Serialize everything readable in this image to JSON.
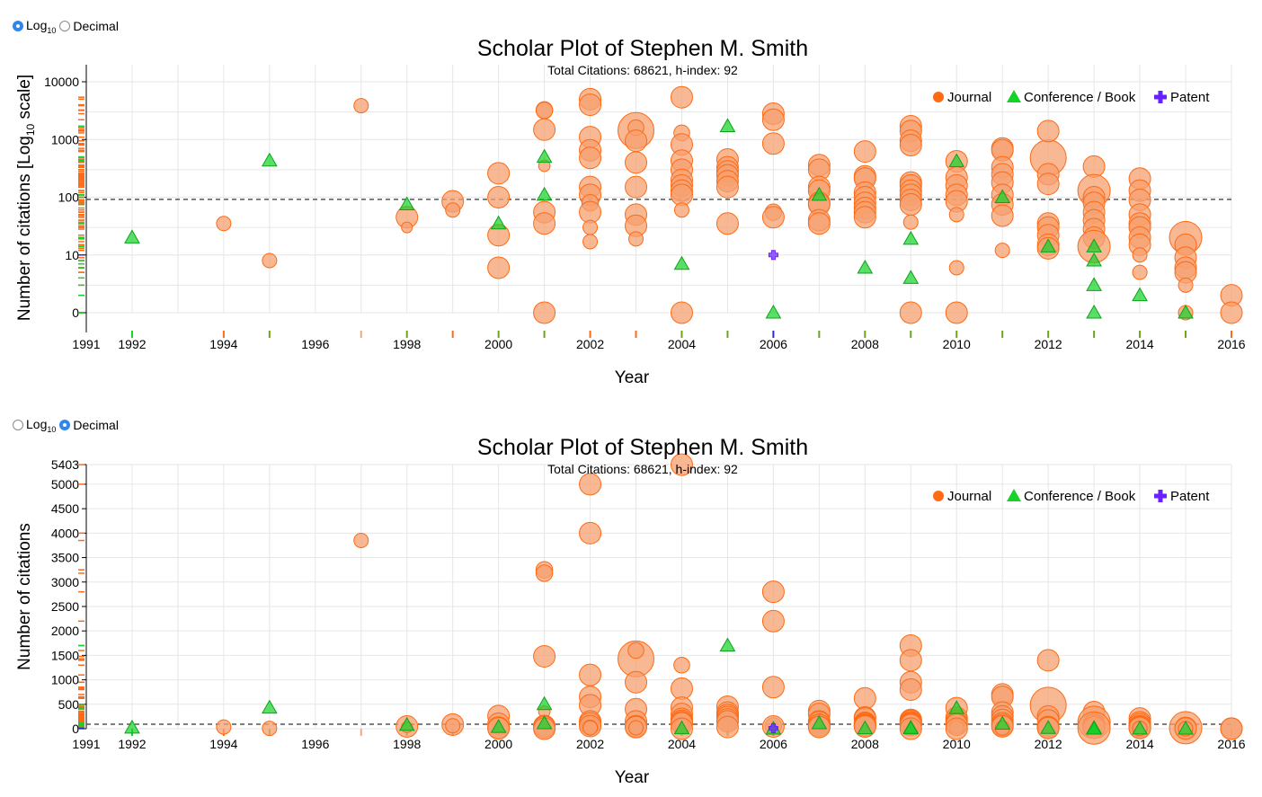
{
  "scale_toggle": {
    "log_label": "Log",
    "log_subscript": "10",
    "decimal_label": "Decimal"
  },
  "colors": {
    "journal": "#ff6a13",
    "journal_fill": "#f6a070",
    "conference": "#14d227",
    "patent": "#6a1fff",
    "hindex_line": "#555555",
    "grid": "#e6e6e6"
  },
  "chart_data": [
    {
      "type": "scatter",
      "scale": "log",
      "selected": "log",
      "title": "Scholar Plot of Stephen M. Smith",
      "subtitle": "Total Citations: 68621, h-index: 92",
      "xlabel": "Year",
      "ylabel": "Number of citations [Log10 scale]",
      "ylabel_parts": [
        "Number of citations [Log",
        "10",
        " scale]"
      ],
      "x_ticks": [
        1991,
        1992,
        1994,
        1996,
        1998,
        2000,
        2002,
        2004,
        2006,
        2008,
        2010,
        2012,
        2014,
        2016
      ],
      "y_ticks": [
        0,
        10,
        100,
        1000,
        10000
      ],
      "y_tick_labels": [
        "0",
        "10",
        "100",
        "1000",
        "10000"
      ],
      "xlim": [
        1991,
        2016
      ],
      "hindex": 92,
      "legend": [
        "Journal",
        "Conference / Book",
        "Patent"
      ],
      "legend_position": "top-right",
      "grid": true
    },
    {
      "type": "scatter",
      "scale": "linear",
      "selected": "decimal",
      "title": "Scholar Plot of Stephen M. Smith",
      "subtitle": "Total Citations: 68621, h-index: 92",
      "xlabel": "Year",
      "ylabel": "Number of citations",
      "x_ticks": [
        1991,
        1992,
        1994,
        1996,
        1998,
        2000,
        2002,
        2004,
        2006,
        2008,
        2010,
        2012,
        2014,
        2016
      ],
      "y_ticks": [
        0,
        500,
        1000,
        1500,
        2000,
        2500,
        3000,
        3500,
        4000,
        4500,
        5000,
        5403
      ],
      "y_tick_labels": [
        "0",
        "500",
        "1000",
        "1500",
        "2000",
        "2500",
        "3000",
        "3500",
        "4000",
        "4500",
        "5000",
        "5403"
      ],
      "ylim": [
        0,
        5403
      ],
      "xlim": [
        1991,
        2016
      ],
      "hindex": 92,
      "legend": [
        "Journal",
        "Conference / Book",
        "Patent"
      ],
      "legend_position": "top-right",
      "grid": true
    }
  ],
  "publications": {
    "journal": [
      [
        1994,
        35,
        1
      ],
      [
        1995,
        8,
        1
      ],
      [
        1997,
        3850,
        1
      ],
      [
        1998,
        45,
        2
      ],
      [
        1998,
        30,
        0.5
      ],
      [
        1999,
        85,
        2
      ],
      [
        1999,
        60,
        1
      ],
      [
        2000,
        260,
        2
      ],
      [
        2000,
        100,
        2
      ],
      [
        2000,
        22,
        2
      ],
      [
        2000,
        6,
        2
      ],
      [
        2001,
        3250,
        1.3
      ],
      [
        2001,
        3180,
        1.3
      ],
      [
        2001,
        1480,
        2
      ],
      [
        2001,
        350,
        0.6
      ],
      [
        2001,
        55,
        2
      ],
      [
        2001,
        35,
        2
      ],
      [
        2001,
        0,
        2
      ],
      [
        2002,
        5000,
        2
      ],
      [
        2002,
        4000,
        2
      ],
      [
        2002,
        1100,
        2
      ],
      [
        2002,
        650,
        2
      ],
      [
        2002,
        480,
        2
      ],
      [
        2002,
        150,
        2
      ],
      [
        2002,
        110,
        2
      ],
      [
        2002,
        80,
        1.3
      ],
      [
        2002,
        55,
        2
      ],
      [
        2002,
        30,
        1
      ],
      [
        2002,
        17,
        1
      ],
      [
        2003,
        1430,
        4
      ],
      [
        2003,
        1600,
        1.2
      ],
      [
        2003,
        950,
        2
      ],
      [
        2003,
        400,
        2
      ],
      [
        2003,
        150,
        2
      ],
      [
        2003,
        50,
        2
      ],
      [
        2003,
        32,
        2
      ],
      [
        2003,
        19,
        1
      ],
      [
        2004,
        5400,
        2
      ],
      [
        2004,
        1300,
        1.2
      ],
      [
        2004,
        820,
        2
      ],
      [
        2004,
        430,
        2
      ],
      [
        2004,
        300,
        2
      ],
      [
        2004,
        200,
        2
      ],
      [
        2004,
        160,
        2
      ],
      [
        2004,
        130,
        2
      ],
      [
        2004,
        110,
        2
      ],
      [
        2004,
        60,
        1
      ],
      [
        2004,
        0,
        2
      ],
      [
        2005,
        450,
        2
      ],
      [
        2005,
        330,
        2
      ],
      [
        2005,
        280,
        2
      ],
      [
        2005,
        240,
        2
      ],
      [
        2005,
        190,
        2
      ],
      [
        2005,
        150,
        2
      ],
      [
        2005,
        35,
        2
      ],
      [
        2006,
        2800,
        2
      ],
      [
        2006,
        2200,
        2
      ],
      [
        2006,
        850,
        2
      ],
      [
        2006,
        55,
        1.3
      ],
      [
        2006,
        45,
        2
      ],
      [
        2007,
        360,
        2
      ],
      [
        2007,
        300,
        2
      ],
      [
        2007,
        150,
        2
      ],
      [
        2007,
        130,
        2
      ],
      [
        2007,
        80,
        2
      ],
      [
        2007,
        75,
        2
      ],
      [
        2007,
        40,
        2
      ],
      [
        2007,
        35,
        2
      ],
      [
        2008,
        620,
        2
      ],
      [
        2008,
        230,
        2
      ],
      [
        2008,
        210,
        2
      ],
      [
        2008,
        120,
        2
      ],
      [
        2008,
        100,
        2
      ],
      [
        2008,
        80,
        2
      ],
      [
        2008,
        65,
        2
      ],
      [
        2008,
        55,
        2
      ],
      [
        2008,
        45,
        2
      ],
      [
        2009,
        1700,
        2
      ],
      [
        2009,
        1400,
        2
      ],
      [
        2009,
        950,
        2
      ],
      [
        2009,
        800,
        2
      ],
      [
        2009,
        180,
        2
      ],
      [
        2009,
        160,
        2
      ],
      [
        2009,
        130,
        2
      ],
      [
        2009,
        110,
        2
      ],
      [
        2009,
        90,
        2
      ],
      [
        2009,
        75,
        2
      ],
      [
        2009,
        37,
        1
      ],
      [
        2009,
        0,
        2
      ],
      [
        2010,
        420,
        2
      ],
      [
        2010,
        220,
        2
      ],
      [
        2010,
        160,
        2
      ],
      [
        2010,
        110,
        2
      ],
      [
        2010,
        85,
        2
      ],
      [
        2010,
        50,
        1
      ],
      [
        2010,
        6,
        1
      ],
      [
        2010,
        0,
        2
      ],
      [
        2011,
        700,
        2
      ],
      [
        2011,
        650,
        2
      ],
      [
        2011,
        330,
        2
      ],
      [
        2011,
        250,
        2
      ],
      [
        2011,
        180,
        2
      ],
      [
        2011,
        110,
        2
      ],
      [
        2011,
        75,
        2
      ],
      [
        2011,
        48,
        2
      ],
      [
        2011,
        12,
        1
      ],
      [
        2012,
        480,
        4
      ],
      [
        2012,
        1400,
        2
      ],
      [
        2012,
        250,
        2
      ],
      [
        2012,
        170,
        2
      ],
      [
        2012,
        35,
        2
      ],
      [
        2012,
        30,
        2
      ],
      [
        2012,
        22,
        2
      ],
      [
        2012,
        15,
        2
      ],
      [
        2012,
        13,
        2
      ],
      [
        2013,
        340,
        2
      ],
      [
        2013,
        130,
        3.5
      ],
      [
        2013,
        100,
        2
      ],
      [
        2013,
        80,
        2
      ],
      [
        2013,
        55,
        2
      ],
      [
        2013,
        40,
        2
      ],
      [
        2013,
        28,
        2
      ],
      [
        2013,
        20,
        2
      ],
      [
        2013,
        14,
        3.5
      ],
      [
        2014,
        210,
        2
      ],
      [
        2014,
        130,
        2
      ],
      [
        2014,
        90,
        2
      ],
      [
        2014,
        50,
        2
      ],
      [
        2014,
        35,
        2
      ],
      [
        2014,
        30,
        2
      ],
      [
        2014,
        20,
        2
      ],
      [
        2014,
        15,
        2
      ],
      [
        2014,
        10,
        1
      ],
      [
        2014,
        5,
        1
      ],
      [
        2015,
        20,
        3.5
      ],
      [
        2015,
        15,
        2
      ],
      [
        2015,
        9,
        2
      ],
      [
        2015,
        6,
        2
      ],
      [
        2015,
        5,
        2
      ],
      [
        2015,
        3,
        1
      ],
      [
        2015,
        0,
        1
      ],
      [
        2016,
        2,
        2
      ],
      [
        2016,
        0,
        2
      ]
    ],
    "conference": [
      [
        1992,
        20
      ],
      [
        1995,
        430
      ],
      [
        1998,
        75
      ],
      [
        2000,
        35
      ],
      [
        2001,
        500
      ],
      [
        2001,
        110
      ],
      [
        2004,
        7
      ],
      [
        2005,
        1700
      ],
      [
        2006,
        0
      ],
      [
        2007,
        110
      ],
      [
        2008,
        6
      ],
      [
        2009,
        19
      ],
      [
        2009,
        4
      ],
      [
        2010,
        420
      ],
      [
        2011,
        100
      ],
      [
        2012,
        14
      ],
      [
        2013,
        14
      ],
      [
        2013,
        8
      ],
      [
        2013,
        3
      ],
      [
        2013,
        0
      ],
      [
        2014,
        2
      ],
      [
        2015,
        0
      ]
    ],
    "patent": [
      [
        2006,
        10
      ]
    ]
  }
}
